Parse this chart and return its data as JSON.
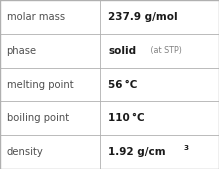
{
  "rows": [
    {
      "label": "molar mass",
      "value": "237.9 g/mol",
      "type": "plain"
    },
    {
      "label": "phase",
      "value": "solid",
      "type": "suffix",
      "suffix": " (at STP)"
    },
    {
      "label": "melting point",
      "value": "56 °C",
      "type": "plain"
    },
    {
      "label": "boiling point",
      "value": "110 °C",
      "type": "plain"
    },
    {
      "label": "density",
      "value": "1.92 g/cm",
      "type": "super",
      "superscript": "3"
    }
  ],
  "col_split": 0.455,
  "background": "#ffffff",
  "border_color": "#b0b0b0",
  "label_color": "#505050",
  "value_color": "#1a1a1a",
  "suffix_color": "#808080",
  "label_fontsize": 7.2,
  "value_fontsize": 7.5,
  "suffix_fontsize": 5.8,
  "super_fontsize": 5.2
}
